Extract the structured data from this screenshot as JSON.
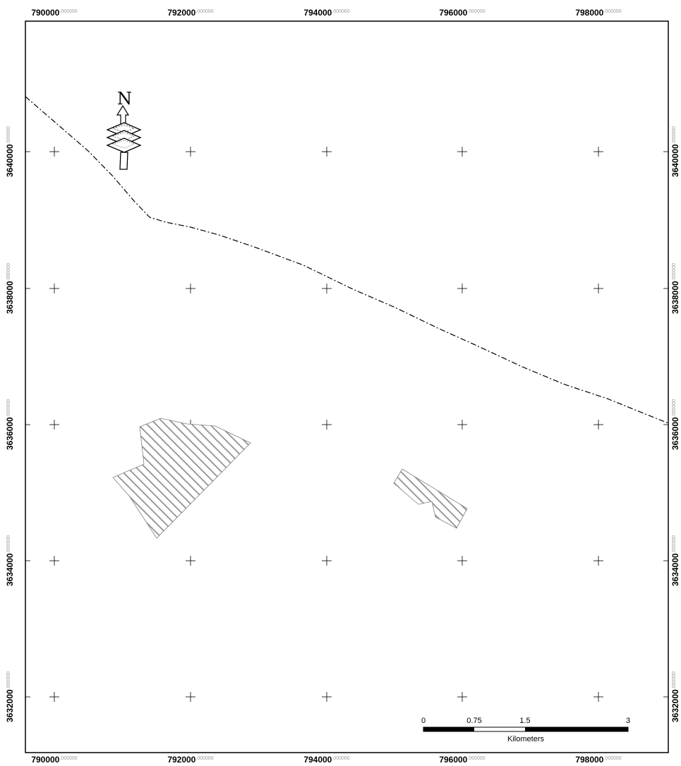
{
  "map": {
    "x_ticks": [
      {
        "main": "790000",
        "dec": ".000000"
      },
      {
        "main": "792000",
        "dec": ".000000"
      },
      {
        "main": "794000",
        "dec": ".000000"
      },
      {
        "main": "796000",
        "dec": ".000000"
      },
      {
        "main": "798000",
        "dec": ".000000"
      }
    ],
    "y_ticks": [
      {
        "main": "3640000",
        "dec": ".000000"
      },
      {
        "main": "3638000",
        "dec": ".000000"
      },
      {
        "main": "3636000",
        "dec": ".000000"
      },
      {
        "main": "3634000",
        "dec": ".000000"
      },
      {
        "main": "3632000",
        "dec": ".000000"
      }
    ],
    "north_arrow": {
      "letter": "N",
      "icon": "north-arrow-icon"
    },
    "scale_bar": {
      "labels": [
        "0",
        "0.75",
        "1.5",
        "3"
      ],
      "unit": "Kilometers"
    },
    "features": {
      "boundary_line": "dash-dot",
      "polygons": [
        "hatched-area-west",
        "hatched-area-east"
      ]
    },
    "colors": {
      "frame": "#000000",
      "hatch": "#9a9a9a",
      "line": "#000000"
    }
  }
}
